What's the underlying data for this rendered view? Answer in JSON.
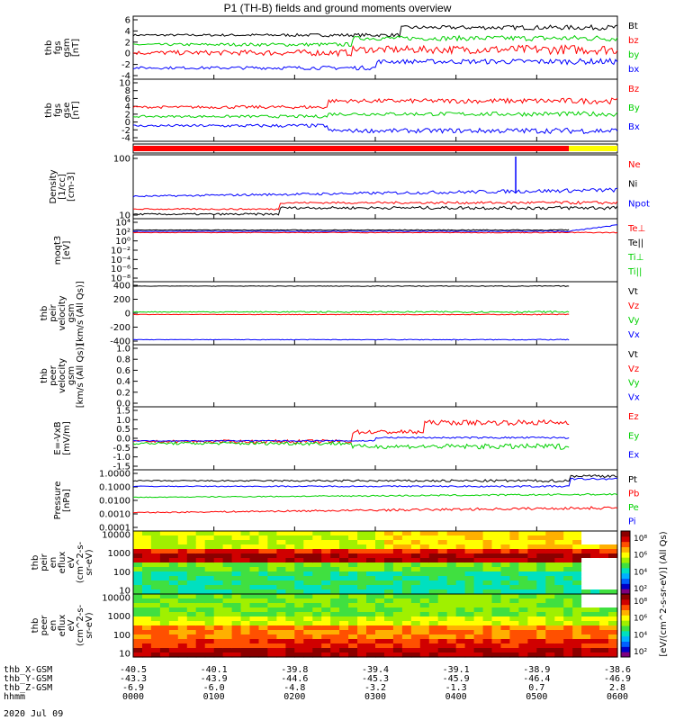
{
  "title": "P1 (TH-B) fields and ground moments overview",
  "date": "2020 Jul 09",
  "colors": {
    "black": "#000000",
    "red": "#ff0000",
    "green": "#00d000",
    "blue": "#0000ff",
    "yellow": "#ffff00"
  },
  "chart_data": [
    {
      "type": "line",
      "ylabel": [
        "thb",
        "fgs",
        "gsm",
        "[nT]"
      ],
      "yticks": [
        "6",
        "4",
        "2",
        "0",
        "-2",
        "-4"
      ],
      "ylim": [
        -4,
        6
      ],
      "series": [
        {
          "name": "Bt",
          "color": "black"
        },
        {
          "name": "bz",
          "color": "red"
        },
        {
          "name": "by",
          "color": "green"
        },
        {
          "name": "bx",
          "color": "blue"
        }
      ]
    },
    {
      "type": "line",
      "ylabel": [
        "thb",
        "fgs",
        "gse",
        "[nT]"
      ],
      "yticks": [
        "10",
        "8",
        "6",
        "4",
        "2",
        "0",
        "-2",
        "-4"
      ],
      "ylim": [
        -4,
        10
      ],
      "series": [
        {
          "name": "Bz",
          "color": "red"
        },
        {
          "name": "By",
          "color": "green"
        },
        {
          "name": "Bx",
          "color": "blue"
        }
      ]
    },
    {
      "type": "bar",
      "ylabel": [],
      "series": [
        {
          "name": "mode",
          "segments": [
            {
              "from": 0,
              "to": 0.9,
              "color": "red"
            },
            {
              "from": 0.9,
              "to": 1,
              "color": "yellow"
            }
          ]
        }
      ]
    },
    {
      "type": "line",
      "ylabel": [
        "Density",
        "[1/cc]",
        "[cm-3]"
      ],
      "scale": "log",
      "yticks": [
        "100",
        "10"
      ],
      "series": [
        {
          "name": "Ne",
          "color": "red"
        },
        {
          "name": "Ni",
          "color": "black"
        },
        {
          "name": "Npot",
          "color": "blue"
        }
      ]
    },
    {
      "type": "line",
      "ylabel": [
        "moqt3",
        "[eV]"
      ],
      "scale": "log",
      "yticks": [
        "10⁴",
        "10²",
        "10⁰",
        "10⁻²",
        "10⁻⁴",
        "10⁻⁶",
        "10⁻⁸"
      ],
      "series": [
        {
          "name": "Te⊥",
          "color": "red"
        },
        {
          "name": "Te||",
          "color": "black"
        },
        {
          "name": "Ti⊥",
          "color": "green"
        },
        {
          "name": "Ti||",
          "color": "green"
        }
      ]
    },
    {
      "type": "line",
      "ylabel": [
        "thb",
        "peir",
        "velocity",
        "gsm",
        "[km/s (All Qs)]"
      ],
      "yticks": [
        "400",
        "200",
        "0",
        "-200",
        "-400"
      ],
      "ylim": [
        -400,
        400
      ],
      "series": [
        {
          "name": "Vt",
          "color": "black"
        },
        {
          "name": "Vz",
          "color": "red"
        },
        {
          "name": "Vy",
          "color": "green"
        },
        {
          "name": "Vx",
          "color": "blue"
        }
      ]
    },
    {
      "type": "line",
      "ylabel": [
        "thb",
        "peer",
        "velocity",
        "gsm",
        "[km/s (All Qs)]"
      ],
      "yticks": [
        "1.0",
        "0.8",
        "0.6",
        "0.4",
        "0.2",
        "0.0"
      ],
      "ylim": [
        0,
        1
      ],
      "series": [
        {
          "name": "Vt",
          "color": "black"
        },
        {
          "name": "Vz",
          "color": "red"
        },
        {
          "name": "Vy",
          "color": "green"
        },
        {
          "name": "Vx",
          "color": "blue"
        }
      ]
    },
    {
      "type": "line",
      "ylabel": [
        "E=-VxB",
        "[mV/m]"
      ],
      "yticks": [
        "1.5",
        "1.0",
        "0.5",
        "0.0",
        "-0.5",
        "-1.0",
        "-1.5"
      ],
      "ylim": [
        -1.5,
        1.5
      ],
      "series": [
        {
          "name": "Ez",
          "color": "red"
        },
        {
          "name": "Ey",
          "color": "green"
        },
        {
          "name": "Ex",
          "color": "blue"
        }
      ]
    },
    {
      "type": "line",
      "ylabel": [
        "Pressure",
        "[nPa]"
      ],
      "scale": "log",
      "yticks": [
        "1.0000",
        "0.1000",
        "0.0100",
        "0.0010",
        "0.0001"
      ],
      "series": [
        {
          "name": "Pt",
          "color": "black"
        },
        {
          "name": "Pb",
          "color": "red"
        },
        {
          "name": "Pe",
          "color": "green"
        },
        {
          "name": "Pi",
          "color": "blue"
        }
      ]
    },
    {
      "type": "heatmap",
      "ylabel": [
        "thb",
        "peir",
        "en",
        "eflux",
        "eV",
        "(cm^2-s-",
        "sr-eV)"
      ],
      "scale": "log",
      "yticks": [
        "10000",
        "1000",
        "100",
        "10"
      ],
      "colorbar": {
        "label": "[eV/(cm^2-s-sr-eV)] (All Qs)",
        "ticks": [
          "10⁸",
          "10⁶",
          "10⁴",
          "10²"
        ]
      }
    },
    {
      "type": "heatmap",
      "ylabel": [
        "thb",
        "peer",
        "en",
        "eflux",
        "eV",
        "(cm^2-s-",
        "sr-eV)"
      ],
      "scale": "log",
      "yticks": [
        "10000",
        "1000",
        "100",
        "10"
      ],
      "colorbar": {
        "label": "[eV/(cm^2-s-sr-eV)] (All Qs)",
        "ticks": [
          "10⁸",
          "10⁶",
          "10⁴",
          "10²"
        ]
      }
    }
  ],
  "ephemeris": {
    "labels": [
      "thb_X-GSM",
      "thb_Y-GSM",
      "thb_Z-GSM",
      "hhmm"
    ],
    "columns": [
      [
        "-40.5",
        "-43.3",
        "-6.9",
        "0000"
      ],
      [
        "-40.1",
        "-43.9",
        "-6.0",
        "0100"
      ],
      [
        "-39.8",
        "-44.6",
        "-4.8",
        "0200"
      ],
      [
        "-39.4",
        "-45.3",
        "-3.2",
        "0300"
      ],
      [
        "-39.1",
        "-45.9",
        "-1.3",
        "0400"
      ],
      [
        "-38.9",
        "-46.4",
        "0.7",
        "0500"
      ],
      [
        "-38.6",
        "-46.9",
        "2.8",
        "0600"
      ]
    ]
  }
}
